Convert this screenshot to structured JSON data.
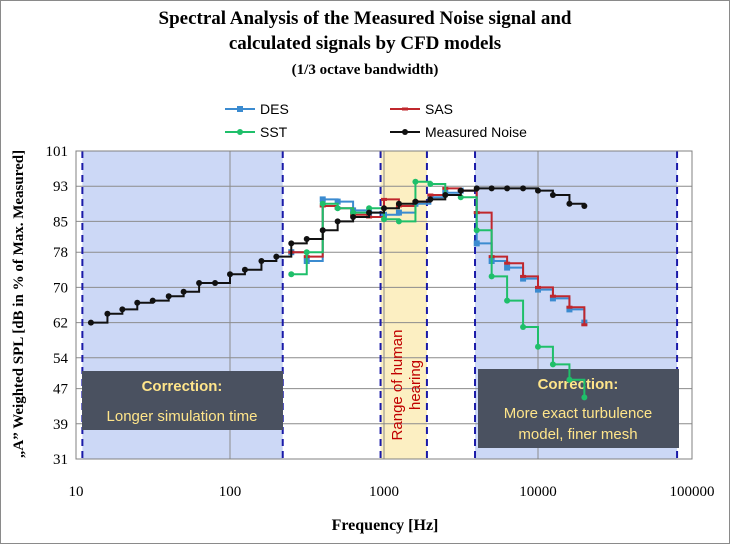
{
  "chart_data": {
    "type": "line",
    "title_line1": "Spectral Analysis of the Measured Noise signal and",
    "title_line2": "calculated signals by CFD models",
    "subtitle": "(1/3 octave bandwidth)",
    "xlabel": "Frequency  [Hz]",
    "ylabel": "„A” Weighted SPL [dB in % of Max. Measured]",
    "x_scale": "log",
    "xlim": [
      10,
      100000
    ],
    "ylim": [
      31,
      101
    ],
    "x_ticks": [
      10,
      100,
      1000,
      10000,
      100000
    ],
    "x_tick_labels": [
      "10",
      "100",
      "1000",
      "10000",
      "100000"
    ],
    "y_ticks": [
      31,
      39,
      47,
      54,
      62,
      70,
      78,
      85,
      93,
      101
    ],
    "grid": true,
    "legend_position": "top",
    "regions": [
      {
        "x_from": 11,
        "x_to": 220,
        "fill": "#ccd8f6"
      },
      {
        "x_from": 950,
        "x_to": 1900,
        "fill": "#fcefc2"
      },
      {
        "x_from": 3900,
        "x_to": 80000,
        "fill": "#ccd8f6"
      }
    ],
    "dashed_lines": [
      11,
      220,
      950,
      1900,
      3900,
      80000
    ],
    "annotations": {
      "left_box": {
        "title": "Correction:",
        "text": "Longer simulation time"
      },
      "right_box": {
        "title": "Correction:",
        "text_line1": "More exact turbulence",
        "text_line2": "model, finer mesh"
      },
      "center_text_line1": "Range of human",
      "center_text_line2": "hearing"
    },
    "series": [
      {
        "name": "DES",
        "color": "#3b8bd0",
        "marker": "square",
        "step": true,
        "x": [
          250,
          315,
          400,
          500,
          630,
          800,
          1000,
          1250,
          1600,
          2000,
          2500,
          3150,
          4000,
          5000,
          6300,
          8000,
          10000,
          12500,
          16000,
          20000
        ],
        "y": [
          78,
          76,
          90,
          89.5,
          87.5,
          87,
          86.5,
          87,
          89,
          90.5,
          91.5,
          92,
          80,
          76,
          74.5,
          72,
          69.5,
          67.5,
          65,
          62
        ]
      },
      {
        "name": "SAS",
        "color": "#c0272d",
        "marker": "dash",
        "step": true,
        "x": [
          250,
          315,
          400,
          500,
          630,
          800,
          1000,
          1250,
          1600,
          2000,
          2500,
          3150,
          4000,
          5000,
          6300,
          8000,
          10000,
          12500,
          16000,
          20000
        ],
        "y": [
          78,
          77,
          88.5,
          88,
          86.5,
          86,
          90,
          88.5,
          89.5,
          91,
          92.5,
          92,
          87,
          77,
          75.5,
          72.5,
          70,
          68,
          65.5,
          61.5
        ]
      },
      {
        "name": "SST",
        "color": "#1fbf6a",
        "marker": "dot",
        "step": true,
        "x": [
          250,
          315,
          400,
          500,
          630,
          800,
          1000,
          1250,
          1600,
          2000,
          2500,
          3150,
          4000,
          5000,
          6300,
          8000,
          10000,
          12500,
          16000,
          20000
        ],
        "y": [
          73,
          78,
          89,
          88,
          87,
          88,
          85.5,
          85,
          94,
          93.5,
          91,
          90.5,
          83,
          72.5,
          67,
          61,
          56.5,
          52.5,
          49,
          45
        ]
      },
      {
        "name": "Measured Noise",
        "color": "#111111",
        "marker": "dot",
        "step": true,
        "x": [
          12.5,
          16,
          20,
          25,
          31.5,
          40,
          50,
          63,
          80,
          100,
          125,
          160,
          200,
          250,
          315,
          400,
          500,
          630,
          800,
          1000,
          1250,
          1600,
          2000,
          2500,
          3150,
          4000,
          5000,
          6300,
          8000,
          10000,
          12500,
          16000,
          20000
        ],
        "y": [
          62,
          64,
          65,
          66.5,
          67,
          68,
          69,
          71,
          71,
          73,
          74,
          76,
          77,
          80,
          81,
          83,
          85,
          86,
          87,
          88,
          89,
          89.5,
          90,
          91,
          92,
          92.5,
          92.5,
          92.5,
          92.5,
          92,
          91,
          89,
          88.5
        ]
      }
    ]
  }
}
